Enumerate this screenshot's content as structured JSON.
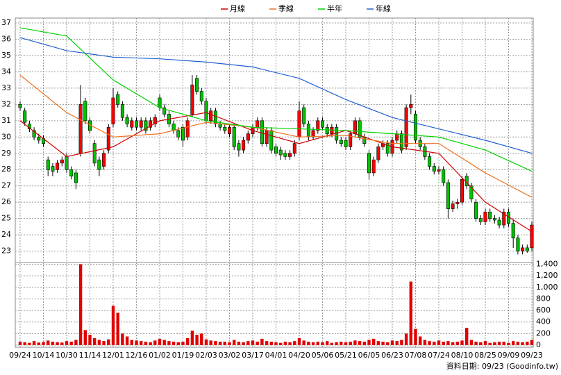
{
  "chart_data": {
    "type": "candlestick",
    "source_note": "資料日期: 09/23 (Goodinfo.tw)",
    "up_color": "#ff0000",
    "down_color": "#00c000",
    "volume_color": "#e00000",
    "grid": true,
    "open": [
      32.0,
      31.6,
      30.8,
      30.4,
      30.0,
      29.9,
      28.6,
      28.2,
      28.0,
      28.4,
      28.8,
      28.0,
      27.8,
      29.0,
      32.2,
      31.0,
      29.6,
      28.6,
      28.2,
      29.2,
      30.8,
      32.6,
      32.0,
      31.2,
      30.6,
      31.0,
      30.6,
      31.0,
      30.6,
      30.8,
      32.4,
      31.8,
      31.4,
      30.8,
      30.4,
      30.6,
      30.0,
      31.4,
      33.6,
      32.8,
      32.2,
      31.0,
      31.6,
      30.8,
      30.6,
      30.2,
      30.6,
      29.6,
      29.2,
      29.8,
      30.2,
      30.6,
      31.0,
      29.6,
      30.4,
      29.4,
      29.2,
      29.0,
      28.8,
      29.0,
      30.0,
      31.8,
      30.8,
      30.0,
      30.4,
      31.0,
      30.6,
      30.2,
      30.6,
      29.8,
      29.8,
      29.4,
      30.2,
      31.0,
      30.0,
      29.0,
      27.8,
      28.6,
      29.4,
      29.6,
      29.0,
      29.8,
      30.2,
      29.4,
      31.8,
      31.4,
      29.8,
      29.4,
      28.8,
      28.2,
      27.9,
      28.0,
      27.2,
      25.6,
      25.9,
      26.0,
      27.6,
      27.0,
      26.0,
      25.0,
      24.8,
      25.4,
      25.0,
      24.9,
      24.6,
      25.4,
      24.7,
      23.8,
      23.0,
      23.2,
      23.2
    ],
    "high": [
      32.2,
      31.8,
      31.0,
      30.6,
      30.2,
      30.1,
      28.8,
      28.4,
      28.6,
      28.8,
      29.0,
      28.2,
      28.0,
      33.2,
      32.4,
      31.2,
      29.8,
      28.8,
      29.2,
      30.8,
      33.0,
      32.8,
      32.2,
      31.4,
      31.2,
      31.2,
      31.2,
      31.2,
      31.2,
      31.4,
      32.6,
      32.0,
      31.6,
      31.0,
      30.6,
      30.8,
      31.2,
      33.8,
      33.8,
      33.0,
      32.4,
      31.8,
      31.8,
      31.0,
      30.8,
      30.8,
      30.8,
      29.8,
      30.0,
      30.4,
      30.8,
      31.2,
      31.2,
      30.6,
      30.6,
      29.6,
      29.4,
      29.2,
      29.2,
      29.8,
      32.2,
      32.0,
      31.0,
      30.6,
      31.2,
      31.2,
      30.8,
      30.8,
      30.8,
      30.0,
      30.0,
      30.4,
      31.2,
      31.2,
      30.2,
      29.2,
      28.8,
      29.6,
      29.8,
      29.8,
      30.0,
      30.4,
      30.4,
      32.0,
      32.6,
      31.6,
      30.0,
      29.6,
      29.0,
      28.4,
      28.2,
      28.2,
      27.4,
      26.1,
      26.2,
      27.6,
      27.8,
      27.2,
      26.2,
      25.2,
      25.6,
      25.6,
      25.2,
      25.1,
      25.6,
      25.6,
      24.9,
      24.0,
      23.4,
      23.4,
      24.8
    ],
    "low": [
      31.6,
      30.7,
      30.3,
      29.8,
      29.6,
      29.4,
      27.6,
      27.6,
      27.8,
      28.2,
      27.8,
      27.4,
      26.8,
      28.8,
      30.8,
      30.2,
      28.2,
      27.6,
      28.0,
      29.0,
      30.6,
      31.8,
      31.0,
      30.6,
      30.4,
      30.4,
      30.4,
      30.2,
      30.4,
      30.6,
      31.6,
      31.2,
      30.6,
      30.2,
      29.8,
      29.4,
      29.8,
      31.2,
      32.6,
      32.0,
      30.8,
      30.8,
      30.6,
      30.4,
      30.2,
      30.0,
      29.2,
      28.8,
      29.0,
      29.6,
      30.0,
      30.4,
      29.4,
      29.4,
      29.0,
      28.8,
      28.6,
      28.6,
      28.6,
      28.8,
      29.8,
      30.6,
      29.8,
      29.8,
      30.2,
      30.4,
      30.0,
      30.0,
      29.6,
      29.4,
      29.2,
      29.2,
      30.0,
      29.8,
      29.4,
      27.4,
      27.6,
      28.4,
      29.2,
      28.8,
      28.8,
      29.6,
      29.0,
      29.2,
      31.4,
      29.6,
      29.2,
      28.6,
      28.0,
      27.7,
      27.7,
      27.0,
      25.0,
      25.4,
      25.6,
      25.8,
      26.8,
      26.0,
      24.8,
      24.6,
      24.6,
      24.8,
      24.7,
      24.4,
      24.4,
      24.5,
      23.2,
      22.8,
      22.8,
      22.9,
      23.0
    ],
    "close": [
      31.8,
      30.9,
      30.5,
      30.0,
      29.8,
      29.6,
      28.0,
      27.9,
      28.4,
      28.6,
      28.0,
      27.6,
      27.2,
      32.0,
      31.0,
      30.4,
      28.4,
      28.0,
      29.0,
      30.6,
      32.4,
      32.0,
      31.2,
      30.8,
      31.0,
      30.6,
      31.0,
      30.4,
      31.0,
      31.2,
      31.8,
      31.4,
      30.8,
      30.4,
      30.0,
      29.8,
      31.0,
      33.2,
      32.8,
      32.2,
      31.0,
      31.6,
      30.8,
      30.6,
      30.4,
      30.6,
      29.4,
      29.2,
      29.8,
      30.2,
      30.6,
      31.0,
      29.6,
      30.4,
      29.2,
      29.0,
      28.9,
      28.8,
      29.0,
      29.6,
      31.6,
      30.8,
      30.0,
      30.4,
      31.0,
      30.6,
      30.2,
      30.6,
      29.8,
      29.6,
      29.4,
      30.2,
      31.0,
      30.0,
      29.6,
      27.8,
      28.6,
      29.4,
      29.6,
      29.0,
      29.8,
      30.2,
      29.2,
      31.8,
      32.0,
      29.8,
      29.4,
      28.8,
      28.2,
      27.9,
      28.0,
      27.2,
      25.6,
      25.9,
      26.0,
      27.4,
      27.0,
      26.2,
      25.0,
      24.8,
      25.4,
      25.0,
      24.9,
      24.6,
      25.4,
      24.7,
      23.8,
      23.0,
      23.2,
      23.0,
      24.6
    ],
    "volume": [
      60,
      50,
      40,
      70,
      45,
      55,
      80,
      60,
      50,
      45,
      70,
      60,
      90,
      1400,
      260,
      180,
      120,
      90,
      70,
      100,
      680,
      560,
      200,
      150,
      90,
      80,
      70,
      60,
      50,
      80,
      110,
      90,
      70,
      60,
      50,
      60,
      120,
      250,
      180,
      200,
      100,
      80,
      70,
      60,
      60,
      50,
      90,
      60,
      50,
      70,
      80,
      60,
      110,
      70,
      60,
      50,
      40,
      60,
      50,
      70,
      120,
      80,
      60,
      50,
      60,
      50,
      70,
      40,
      50,
      60,
      50,
      60,
      80,
      70,
      60,
      90,
      110,
      70,
      60,
      50,
      80,
      70,
      90,
      200,
      1100,
      280,
      150,
      90,
      70,
      60,
      80,
      60,
      70,
      50,
      60,
      80,
      300,
      90,
      60,
      50,
      70,
      40,
      50,
      60,
      60,
      40,
      70,
      60,
      50,
      60,
      90
    ],
    "series": [
      {
        "name": "月線",
        "color": "#d00000",
        "x": [
          0,
          10,
          20,
          30,
          40,
          50,
          60,
          70,
          80,
          90,
          100,
          110
        ],
        "values": [
          31.0,
          28.8,
          29.4,
          31.0,
          31.5,
          30.4,
          29.6,
          30.4,
          29.4,
          29.0,
          26.0,
          24.2
        ]
      },
      {
        "name": "季線",
        "color": "#f07020",
        "x": [
          0,
          10,
          20,
          30,
          40,
          50,
          60,
          70,
          80,
          90,
          100,
          110
        ],
        "values": [
          33.8,
          31.5,
          30.0,
          30.2,
          30.9,
          30.6,
          30.0,
          30.1,
          29.6,
          29.6,
          27.8,
          26.3
        ]
      },
      {
        "name": "半年",
        "color": "#00d000",
        "x": [
          0,
          10,
          20,
          30,
          40,
          50,
          60,
          70,
          80,
          90,
          100,
          110
        ],
        "values": [
          36.7,
          36.2,
          33.5,
          31.8,
          31.0,
          30.6,
          30.5,
          30.4,
          30.2,
          30.0,
          29.2,
          27.9
        ]
      },
      {
        "name": "年線",
        "color": "#2060d0",
        "x": [
          0,
          10,
          20,
          30,
          40,
          50,
          60,
          70,
          80,
          90,
          100,
          110
        ],
        "values": [
          36.1,
          35.3,
          34.9,
          34.8,
          34.6,
          34.3,
          33.6,
          32.3,
          31.2,
          30.5,
          29.8,
          29.0
        ]
      }
    ],
    "xlim": [
      0,
      110
    ],
    "xticks": [
      {
        "value": 0,
        "label": "09/24"
      },
      {
        "value": 5,
        "label": "10/14"
      },
      {
        "value": 10,
        "label": "10/30"
      },
      {
        "value": 15,
        "label": "11/14"
      },
      {
        "value": 20,
        "label": "12/01"
      },
      {
        "value": 25,
        "label": "12/16"
      },
      {
        "value": 30,
        "label": "01/02"
      },
      {
        "value": 35,
        "label": "01/19"
      },
      {
        "value": 40,
        "label": "02/03"
      },
      {
        "value": 45,
        "label": "03/02"
      },
      {
        "value": 50,
        "label": "03/17"
      },
      {
        "value": 55,
        "label": "04/01"
      },
      {
        "value": 60,
        "label": "04/20"
      },
      {
        "value": 65,
        "label": "05/06"
      },
      {
        "value": 70,
        "label": "05/21"
      },
      {
        "value": 75,
        "label": "06/05"
      },
      {
        "value": 80,
        "label": "06/23"
      },
      {
        "value": 85,
        "label": "07/08"
      },
      {
        "value": 90,
        "label": "07/24"
      },
      {
        "value": 95,
        "label": "08/10"
      },
      {
        "value": 100,
        "label": "08/25"
      },
      {
        "value": 105,
        "label": "09/09"
      },
      {
        "value": 110,
        "label": "09/23"
      }
    ],
    "ylim": [
      22.3,
      37.3
    ],
    "yticks": [
      23,
      24,
      25,
      26,
      27,
      28,
      29,
      30,
      31,
      32,
      33,
      34,
      35,
      36,
      37
    ],
    "y2lim": [
      0,
      1430
    ],
    "y2ticks": [
      0,
      200,
      400,
      600,
      800,
      {
        "value": 1000,
        "label": "1,000"
      },
      {
        "value": 1200,
        "label": "1,200"
      },
      {
        "value": 1400,
        "label": "1,400"
      }
    ]
  }
}
